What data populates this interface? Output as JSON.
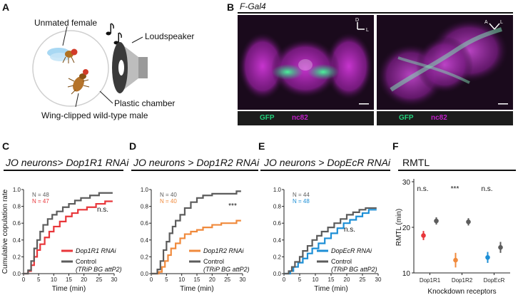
{
  "panels": {
    "A": {
      "label": "A",
      "unmated_female": "Unmated female",
      "loudspeaker": "Loudspeaker",
      "plastic_chamber": "Plastic chamber",
      "male": "Wing-clipped wild-type male"
    },
    "B": {
      "label": "B",
      "title": "F-Gal4",
      "orient_left": [
        "D",
        "L"
      ],
      "orient_right": [
        "A",
        "L"
      ],
      "gfp": "GFP",
      "nc82": "nc82"
    },
    "C": {
      "label": "C",
      "title": "JO neurons> Dop1R1 RNAi",
      "n_control": "N = 48",
      "n_rnai": "N = 47",
      "sig": "n.s.",
      "rnai_legend": "Dop1R1 RNAi"
    },
    "D": {
      "label": "D",
      "title": "JO neurons > Dop1R2 RNAi",
      "n_control": "N = 40",
      "n_rnai": "N = 40",
      "sig": "***",
      "rnai_legend": "Dop1R2 RNAi"
    },
    "E": {
      "label": "E",
      "title": "JO neurons > DopEcR RNAi",
      "n_control": "N = 44",
      "n_rnai": "N = 48",
      "sig": "n.s.",
      "rnai_legend": "DopEcR RNAi"
    },
    "F": {
      "label": "F",
      "title": "RMTL"
    }
  },
  "legend_common": {
    "control": "Control",
    "control_sub": "(TRiP BG attP2)"
  },
  "colors": {
    "control": "#5c5c5c",
    "dop1r1": "#e8363a",
    "dop1r2": "#f08a3c",
    "dopecr": "#1d8fd6",
    "gfp": "#22d07a",
    "nc82": "#c020c8"
  },
  "chart_data": [
    {
      "type": "line",
      "panel": "C",
      "xlabel": "Time (min)",
      "ylabel": "Cumulative copulation rate",
      "xlim": [
        0,
        30
      ],
      "ylim": [
        0,
        1
      ],
      "xticks": [
        "0",
        "5",
        "10",
        "15",
        "20",
        "25",
        "30"
      ],
      "yticks": [
        "0.0",
        "0.2",
        "0.4",
        "0.6",
        "0.8",
        "1.0"
      ],
      "series": [
        {
          "name": "Control (TRiP BG attP2)",
          "color_key": "control",
          "x": [
            0,
            1.5,
            2.5,
            3.5,
            4.5,
            5.5,
            6.5,
            8,
            9.5,
            11,
            13,
            15,
            17,
            19,
            22,
            25,
            29.5
          ],
          "y": [
            0,
            0.04,
            0.15,
            0.3,
            0.4,
            0.5,
            0.58,
            0.65,
            0.7,
            0.74,
            0.79,
            0.83,
            0.87,
            0.9,
            0.93,
            0.96,
            0.96
          ]
        },
        {
          "name": "Dop1R1 RNAi",
          "color_key": "dop1r1",
          "x": [
            0,
            1.5,
            2.5,
            3.5,
            4.5,
            5.5,
            7,
            8.5,
            10,
            12,
            14,
            16,
            18,
            21,
            24,
            27,
            29.5
          ],
          "y": [
            0,
            0.03,
            0.1,
            0.2,
            0.28,
            0.35,
            0.43,
            0.5,
            0.56,
            0.62,
            0.68,
            0.72,
            0.76,
            0.79,
            0.83,
            0.86,
            0.86
          ]
        }
      ]
    },
    {
      "type": "line",
      "panel": "D",
      "xlabel": "Time (min)",
      "xlim": [
        0,
        30
      ],
      "ylim": [
        0,
        1
      ],
      "xticks": [
        "0",
        "5",
        "10",
        "15",
        "20",
        "25",
        "30"
      ],
      "yticks": [
        "0.0",
        "0.2",
        "0.4",
        "0.6",
        "0.8",
        "1.0"
      ],
      "series": [
        {
          "name": "Control (TRiP BG attP2)",
          "color_key": "control",
          "x": [
            0,
            2,
            3,
            4,
            5,
            6,
            7,
            8,
            9.5,
            11,
            13,
            15,
            17,
            20,
            24,
            27,
            28,
            29.5
          ],
          "y": [
            0,
            0.05,
            0.15,
            0.28,
            0.38,
            0.48,
            0.56,
            0.63,
            0.7,
            0.78,
            0.85,
            0.9,
            0.93,
            0.95,
            0.95,
            0.95,
            0.98,
            0.98
          ]
        },
        {
          "name": "Dop1R2 RNAi",
          "color_key": "dop1r2",
          "x": [
            0,
            2.5,
            3.5,
            4.5,
            5.5,
            6.5,
            8,
            9.5,
            11,
            13,
            15,
            17,
            20,
            23,
            26,
            28,
            29.5
          ],
          "y": [
            0,
            0.02,
            0.08,
            0.15,
            0.22,
            0.3,
            0.36,
            0.42,
            0.47,
            0.5,
            0.52,
            0.55,
            0.58,
            0.6,
            0.6,
            0.63,
            0.63
          ]
        }
      ]
    },
    {
      "type": "line",
      "panel": "E",
      "xlabel": "Time (min)",
      "xlim": [
        0,
        30
      ],
      "ylim": [
        0,
        1
      ],
      "xticks": [
        "0",
        "5",
        "10",
        "15",
        "20",
        "25",
        "30"
      ],
      "yticks": [
        "0.0",
        "0.2",
        "0.4",
        "0.6",
        "0.8",
        "1.0"
      ],
      "series": [
        {
          "name": "Control (TRiP BG attP2)",
          "color_key": "control",
          "x": [
            0,
            1.5,
            2.5,
            3.5,
            5,
            6,
            7.5,
            9,
            10.5,
            12,
            14,
            16,
            18,
            20,
            22,
            24,
            26,
            29.5
          ],
          "y": [
            0,
            0.03,
            0.08,
            0.14,
            0.2,
            0.27,
            0.33,
            0.4,
            0.45,
            0.5,
            0.55,
            0.6,
            0.65,
            0.7,
            0.73,
            0.76,
            0.78,
            0.78
          ]
        },
        {
          "name": "DopEcR RNAi",
          "color_key": "dopecr",
          "x": [
            0,
            2,
            3,
            4.5,
            6,
            7.5,
            9,
            11,
            13,
            15,
            17,
            19,
            21,
            23,
            25,
            27,
            29.5
          ],
          "y": [
            0,
            0.03,
            0.08,
            0.13,
            0.18,
            0.24,
            0.3,
            0.36,
            0.42,
            0.48,
            0.54,
            0.6,
            0.64,
            0.68,
            0.72,
            0.76,
            0.76
          ]
        }
      ]
    },
    {
      "type": "scatter",
      "panel": "F",
      "xlabel": "Knockdown receptors",
      "ylabel": "RMTL (min)",
      "ylim": [
        10,
        30
      ],
      "yticks": [
        "10",
        "20",
        "30"
      ],
      "categories": [
        "Dop1R1",
        "Dop1R2",
        "DopEcR"
      ],
      "significance": [
        "n.s.",
        "***",
        "n.s."
      ],
      "points": [
        {
          "category": "Dop1R1",
          "group": "RNAi",
          "color_key": "dop1r1",
          "mean": 18.2,
          "lo": 17.2,
          "hi": 19.2
        },
        {
          "category": "Dop1R1",
          "group": "Control",
          "color_key": "control",
          "mean": 21.4,
          "lo": 20.6,
          "hi": 22.2
        },
        {
          "category": "Dop1R2",
          "group": "RNAi",
          "color_key": "dop1r2",
          "mean": 12.8,
          "lo": 11.2,
          "hi": 14.4
        },
        {
          "category": "Dop1R2",
          "group": "Control",
          "color_key": "control",
          "mean": 21.2,
          "lo": 20.4,
          "hi": 22.0
        },
        {
          "category": "DopEcR",
          "group": "RNAi",
          "color_key": "dopecr",
          "mean": 13.4,
          "lo": 12.2,
          "hi": 14.6
        },
        {
          "category": "DopEcR",
          "group": "Control",
          "color_key": "control",
          "mean": 15.6,
          "lo": 14.4,
          "hi": 16.8
        }
      ]
    }
  ]
}
